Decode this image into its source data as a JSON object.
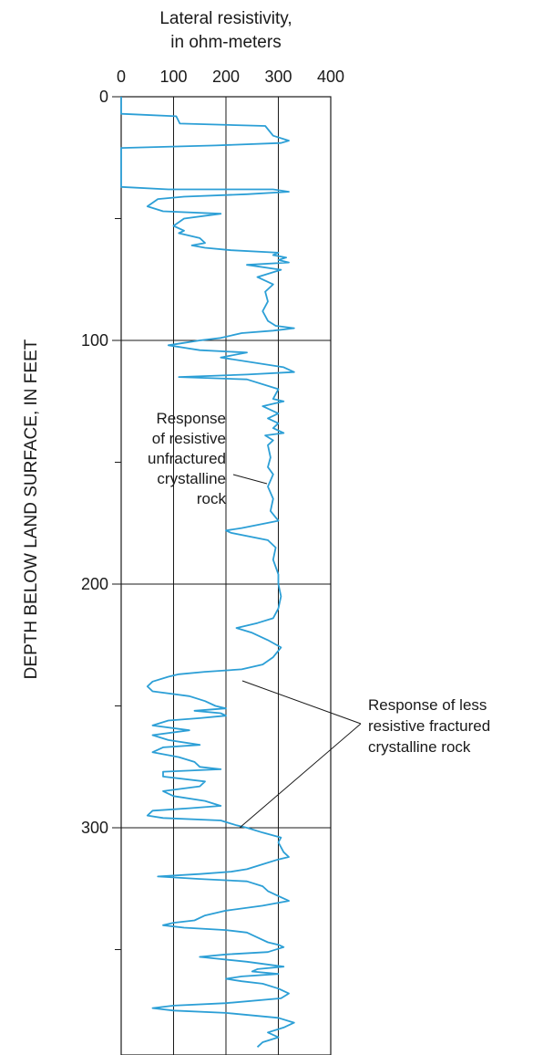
{
  "chart_data": {
    "type": "line",
    "orientation": "vertical-log",
    "xlabel_lines": [
      "Lateral resistivity,",
      "in ohm-meters"
    ],
    "ylabel": "DEPTH BELOW LAND SURFACE, IN FEET",
    "xlim": [
      0,
      400
    ],
    "ylim": [
      0,
      390
    ],
    "y_inverted": true,
    "x_ticks": [
      "0",
      "100",
      "200",
      "300",
      "400"
    ],
    "y_tick_labels": [
      "0",
      "100",
      "200",
      "300"
    ],
    "grid": "vertical lines at 100, 200, 300 and horizontal lines at 100, 200, 300",
    "line_color": "#2c9fd6",
    "series": [
      {
        "points": [
          [
            0,
            0
          ],
          [
            0,
            7
          ],
          [
            105,
            8
          ],
          [
            112,
            11
          ],
          [
            275,
            12
          ],
          [
            290,
            16
          ],
          [
            320,
            18
          ],
          [
            305,
            19
          ],
          [
            180,
            20
          ],
          [
            0,
            21
          ],
          [
            0,
            37
          ],
          [
            90,
            38
          ],
          [
            290,
            38
          ],
          [
            320,
            39
          ],
          [
            240,
            40
          ],
          [
            120,
            41
          ],
          [
            70,
            42
          ],
          [
            50,
            45
          ],
          [
            80,
            47
          ],
          [
            190,
            48
          ],
          [
            120,
            50
          ],
          [
            100,
            53
          ],
          [
            120,
            55
          ],
          [
            110,
            56
          ],
          [
            150,
            58
          ],
          [
            160,
            60
          ],
          [
            135,
            61
          ],
          [
            160,
            62
          ],
          [
            210,
            63
          ],
          [
            300,
            64
          ],
          [
            290,
            65
          ],
          [
            315,
            66
          ],
          [
            300,
            67
          ],
          [
            320,
            68
          ],
          [
            240,
            69
          ],
          [
            305,
            71
          ],
          [
            260,
            74
          ],
          [
            290,
            77
          ],
          [
            275,
            80
          ],
          [
            280,
            84
          ],
          [
            270,
            88
          ],
          [
            280,
            92
          ],
          [
            295,
            94
          ],
          [
            330,
            95
          ],
          [
            290,
            96
          ],
          [
            230,
            97
          ],
          [
            190,
            99
          ],
          [
            150,
            100
          ],
          [
            120,
            101
          ],
          [
            90,
            102
          ],
          [
            150,
            104
          ],
          [
            240,
            105
          ],
          [
            190,
            107
          ],
          [
            310,
            111
          ],
          [
            330,
            113
          ],
          [
            240,
            114
          ],
          [
            110,
            115
          ],
          [
            240,
            116
          ],
          [
            300,
            120
          ],
          [
            290,
            124
          ],
          [
            310,
            125
          ],
          [
            270,
            127
          ],
          [
            300,
            130
          ],
          [
            280,
            132
          ],
          [
            300,
            134
          ],
          [
            290,
            136
          ],
          [
            310,
            138
          ],
          [
            275,
            139
          ],
          [
            290,
            141
          ],
          [
            280,
            143
          ],
          [
            285,
            148
          ],
          [
            280,
            152
          ],
          [
            290,
            155
          ],
          [
            280,
            160
          ],
          [
            290,
            165
          ],
          [
            285,
            170
          ],
          [
            300,
            174
          ],
          [
            230,
            177
          ],
          [
            200,
            178
          ],
          [
            210,
            179
          ],
          [
            280,
            182
          ],
          [
            295,
            185
          ],
          [
            290,
            190
          ],
          [
            300,
            196
          ],
          [
            300,
            200
          ],
          [
            305,
            205
          ],
          [
            300,
            210
          ],
          [
            290,
            214
          ],
          [
            260,
            216
          ],
          [
            220,
            218
          ],
          [
            250,
            220
          ],
          [
            280,
            223
          ],
          [
            305,
            226
          ],
          [
            290,
            230
          ],
          [
            270,
            233
          ],
          [
            230,
            235
          ],
          [
            160,
            236
          ],
          [
            110,
            237
          ],
          [
            90,
            238
          ],
          [
            60,
            240
          ],
          [
            50,
            242
          ],
          [
            60,
            244
          ],
          [
            130,
            246
          ],
          [
            160,
            248
          ],
          [
            180,
            250
          ],
          [
            200,
            251
          ],
          [
            140,
            252
          ],
          [
            190,
            253
          ],
          [
            200,
            254
          ],
          [
            150,
            255
          ],
          [
            90,
            256
          ],
          [
            60,
            258
          ],
          [
            130,
            260
          ],
          [
            60,
            262
          ],
          [
            90,
            264
          ],
          [
            150,
            266
          ],
          [
            80,
            267
          ],
          [
            60,
            269
          ],
          [
            110,
            271
          ],
          [
            140,
            273
          ],
          [
            150,
            275
          ],
          [
            190,
            276
          ],
          [
            80,
            277
          ],
          [
            80,
            279
          ],
          [
            160,
            281
          ],
          [
            150,
            283
          ],
          [
            80,
            285
          ],
          [
            100,
            287
          ],
          [
            160,
            289
          ],
          [
            190,
            291
          ],
          [
            130,
            292
          ],
          [
            60,
            293
          ],
          [
            50,
            295
          ],
          [
            80,
            296
          ],
          [
            190,
            297
          ],
          [
            220,
            299
          ],
          [
            240,
            300
          ],
          [
            270,
            302
          ],
          [
            305,
            304
          ],
          [
            300,
            306
          ],
          [
            310,
            310
          ],
          [
            320,
            312
          ],
          [
            300,
            313
          ],
          [
            270,
            315
          ],
          [
            240,
            317
          ],
          [
            210,
            318
          ],
          [
            150,
            319
          ],
          [
            70,
            320
          ],
          [
            150,
            321
          ],
          [
            240,
            322
          ],
          [
            270,
            324
          ],
          [
            280,
            326
          ],
          [
            300,
            328
          ],
          [
            320,
            330
          ],
          [
            270,
            332
          ],
          [
            200,
            334
          ],
          [
            160,
            336
          ],
          [
            140,
            338
          ],
          [
            100,
            339
          ],
          [
            80,
            340
          ],
          [
            120,
            341
          ],
          [
            200,
            342
          ],
          [
            240,
            343
          ],
          [
            260,
            345
          ],
          [
            280,
            347
          ],
          [
            300,
            348
          ],
          [
            310,
            349
          ],
          [
            280,
            351
          ],
          [
            200,
            352
          ],
          [
            150,
            353
          ],
          [
            240,
            355
          ],
          [
            310,
            357
          ],
          [
            260,
            358
          ],
          [
            250,
            359
          ],
          [
            300,
            360
          ],
          [
            230,
            361
          ],
          [
            200,
            362
          ],
          [
            230,
            363
          ],
          [
            270,
            364
          ],
          [
            300,
            366
          ],
          [
            320,
            368
          ],
          [
            305,
            370
          ],
          [
            200,
            372
          ],
          [
            100,
            373
          ],
          [
            60,
            374
          ],
          [
            100,
            375
          ],
          [
            200,
            376
          ],
          [
            300,
            378
          ],
          [
            330,
            380
          ],
          [
            310,
            382
          ],
          [
            280,
            384
          ],
          [
            300,
            386
          ],
          [
            270,
            388
          ],
          [
            260,
            390
          ]
        ]
      }
    ],
    "annotations": [
      {
        "id": "unfractured",
        "lines": [
          "Response",
          "of resistive",
          "unfractured",
          "crystalline",
          "rock"
        ],
        "points_to": [
          [
            280,
            153
          ]
        ]
      },
      {
        "id": "fractured",
        "lines": [
          "Response of less",
          "resistive fractured",
          "crystalline rock"
        ],
        "points_to": [
          [
            234,
            240
          ],
          [
            230,
            300
          ]
        ]
      }
    ]
  }
}
